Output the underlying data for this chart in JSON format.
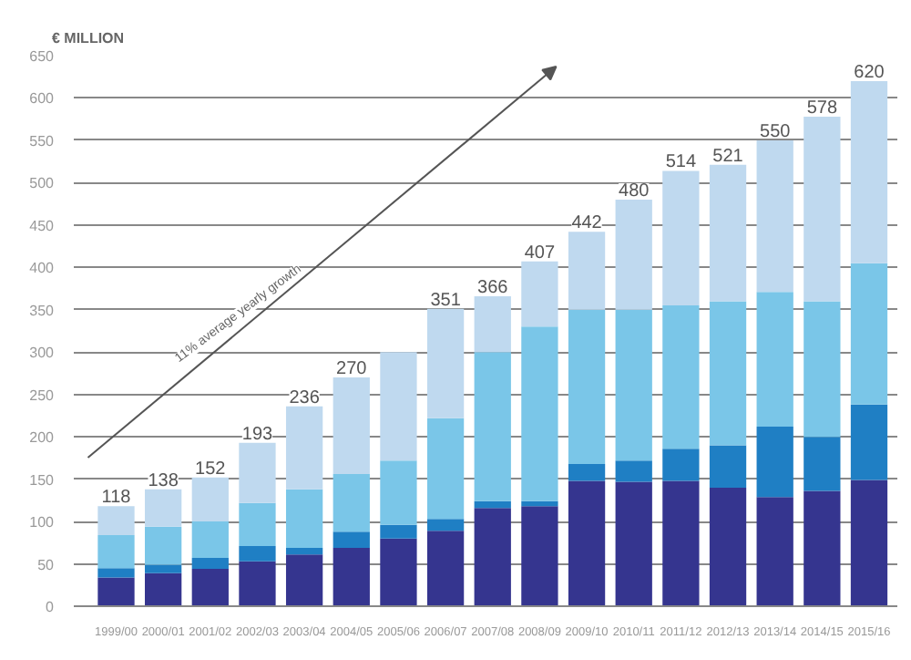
{
  "chart_data": {
    "type": "bar",
    "stacked": true,
    "ylabel": "€ MILLION",
    "categories": [
      "1999/00",
      "2000/01",
      "2001/02",
      "2002/03",
      "2003/04",
      "2004/05",
      "2005/06",
      "2006/07",
      "2007/08",
      "2008/09",
      "2009/10",
      "2010/11",
      "2011/12",
      "2012/13",
      "2013/14",
      "2014/15",
      "2015/16"
    ],
    "series": [
      {
        "color": "#35358f",
        "values": [
          34,
          39,
          44,
          53,
          61,
          69,
          80,
          89,
          116,
          118,
          148,
          147,
          148,
          140,
          129,
          136,
          149
        ]
      },
      {
        "color": "#1f7fc4",
        "values": [
          11,
          10,
          13,
          18,
          8,
          19,
          16,
          14,
          8,
          6,
          20,
          25,
          38,
          50,
          83,
          64,
          89
        ]
      },
      {
        "color": "#7ac6e8",
        "values": [
          39,
          45,
          43,
          51,
          69,
          68,
          76,
          119,
          176,
          206,
          182,
          178,
          169,
          170,
          159,
          160,
          167
        ]
      },
      {
        "color": "#bfd9ef",
        "values": [
          34,
          44,
          52,
          71,
          98,
          114,
          128,
          129,
          66,
          77,
          92,
          130,
          159,
          161,
          179,
          218,
          215
        ]
      }
    ],
    "totals": [
      "118",
      "138",
      "152",
      "193",
      "236",
      "270",
      null,
      "351",
      "366",
      "407",
      "442",
      "480",
      "514",
      "521",
      "550",
      "578",
      "620"
    ],
    "ylim": [
      0,
      650
    ],
    "yticks": [
      0,
      50,
      100,
      150,
      200,
      250,
      300,
      350,
      400,
      450,
      500,
      550,
      600,
      650
    ],
    "grid": "y",
    "annotations": [
      "11% average yearly growth"
    ]
  }
}
